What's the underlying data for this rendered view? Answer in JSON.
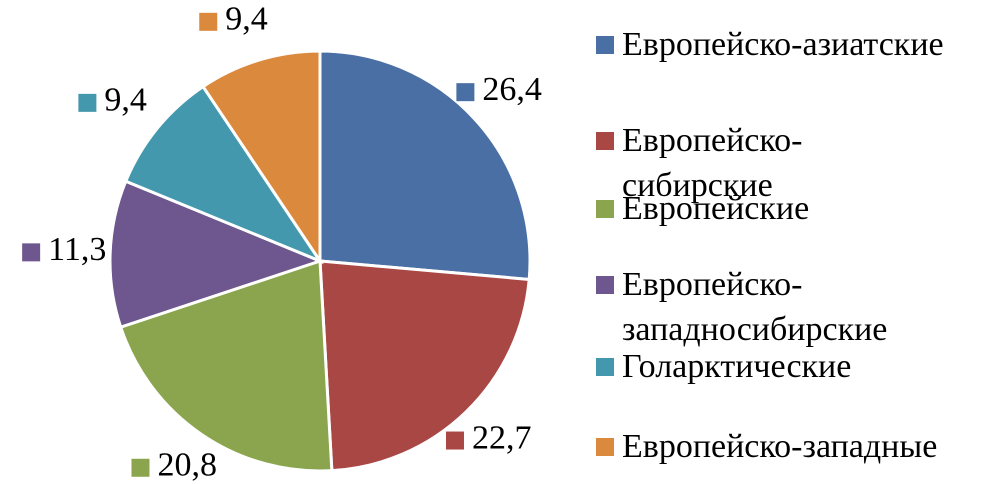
{
  "chart_data": {
    "type": "pie",
    "categories": [
      "Европейско-азиатские",
      "Европейско-сибирские",
      "Европейские",
      "Европейско-западносибирские",
      "Голарктические",
      "Европейско-западные"
    ],
    "values": [
      26.4,
      22.7,
      20.8,
      11.3,
      9.4,
      9.4
    ],
    "value_labels": [
      "26,4",
      "22,7",
      "20,8",
      "11,3",
      "9,4",
      "9,4"
    ],
    "colors": [
      "#4a6fa5",
      "#a94744",
      "#8aa54e",
      "#6e568f",
      "#4498ad",
      "#db8a3d"
    ],
    "legend": "right"
  }
}
